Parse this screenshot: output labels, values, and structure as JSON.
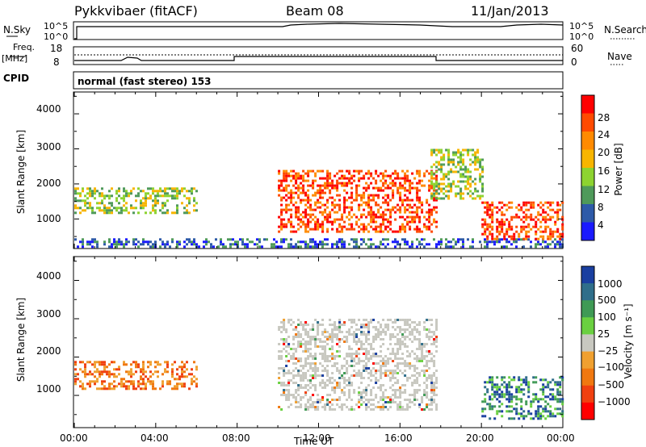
{
  "header": {
    "station": "Pykkvibaer (fitACF)",
    "beam": "Beam 08",
    "date": "11/Jan/2013"
  },
  "top_panels": {
    "nsky_label": "N.Sky",
    "nsky_ticks": [
      "10^5",
      "10^0"
    ],
    "nsearch_label": "N.Search",
    "nsearch_ticks": [
      "10^5",
      "10^0"
    ],
    "freq_label_1": "Freq.",
    "freq_label_2": "[MHz]",
    "freq_ticks": [
      "18",
      "8"
    ],
    "nave_label": "Nave",
    "nave_ticks": [
      "60",
      "0"
    ],
    "cpid_label": "CPID",
    "cpid_text": "normal (fast stereo) 153"
  },
  "chart_data": [
    {
      "type": "heatmap",
      "title": "",
      "ylabel": "Slant Range [km]",
      "ylim": [
        180,
        4600
      ],
      "yticks": [
        "4000",
        "3000",
        "2000",
        "1000"
      ],
      "colorbar": {
        "label": "Power [dB]",
        "ticks": [
          "28",
          "24",
          "20",
          "16",
          "12",
          "8",
          "4"
        ],
        "colors": [
          "#ff0000",
          "#ff4a00",
          "#ff8a00",
          "#f7b500",
          "#8dd330",
          "#4f9a5a",
          "#2e5aa8",
          "#1a1aff"
        ]
      },
      "regions": [
        {
          "t0": 0.0,
          "t1": 6.0,
          "r0": 1200,
          "r1": 1900,
          "level": "mid"
        },
        {
          "t0": 0.0,
          "t1": 24.0,
          "r0": 180,
          "r1": 450,
          "level": "low"
        },
        {
          "t0": 10.0,
          "t1": 17.8,
          "r0": 650,
          "r1": 2400,
          "level": "high"
        },
        {
          "t0": 17.5,
          "t1": 20.0,
          "r0": 1600,
          "r1": 3000,
          "level": "mid"
        },
        {
          "t0": 20.0,
          "t1": 24.0,
          "r0": 400,
          "r1": 1500,
          "level": "high"
        }
      ]
    },
    {
      "type": "heatmap",
      "title": "",
      "ylabel": "Slant Range [km]",
      "xlabel": "Time UT",
      "ylim": [
        180,
        4600
      ],
      "yticks": [
        "4000",
        "3000",
        "2000",
        "1000"
      ],
      "x_ticks": [
        "00:00",
        "04:00",
        "08:00",
        "12:00",
        "16:00",
        "20:00",
        "00:00"
      ],
      "colorbar": {
        "label": "Velocity [m s⁻¹]",
        "ticks": [
          "1000",
          "500",
          "100",
          "25",
          "−25",
          "−100",
          "−500",
          "−1000"
        ],
        "colors": [
          "#1a3fa0",
          "#2f6e8a",
          "#3f9a55",
          "#6ad040",
          "#c8c8c0",
          "#f0a030",
          "#f07810",
          "#f04010",
          "#ff0000"
        ]
      },
      "regions": [
        {
          "t0": 0.0,
          "t1": 6.0,
          "r0": 1200,
          "r1": 1900,
          "level": "negative"
        },
        {
          "t0": 10.0,
          "t1": 17.8,
          "r0": 650,
          "r1": 3000,
          "level": "near-zero"
        },
        {
          "t0": 20.0,
          "t1": 24.0,
          "r0": 400,
          "r1": 1500,
          "level": "positive"
        }
      ]
    }
  ]
}
